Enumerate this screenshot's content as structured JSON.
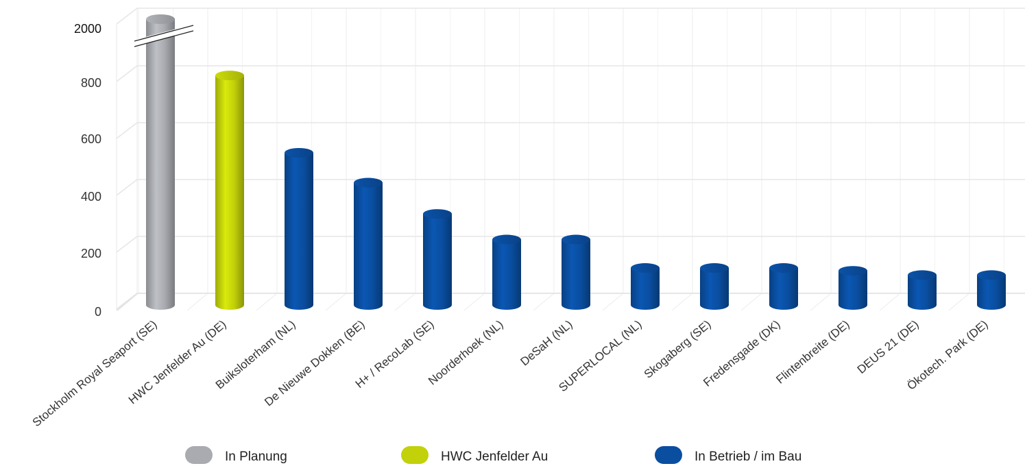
{
  "chart_data": {
    "type": "bar",
    "title": "",
    "xlabel": "",
    "ylabel": "",
    "ylim": [
      0,
      2000
    ],
    "y_ticks": [
      "0",
      "200",
      "400",
      "600",
      "800",
      "2000"
    ],
    "axis_break": {
      "from": 1000,
      "to": 2000
    },
    "grid": true,
    "legend_position": "bottom",
    "categories": [
      "Stockholm Royal Seaport (SE)",
      "HWC Jenfelder Au (DE)",
      "Buiksloterham (NL)",
      "De Nieuwe Dokken (BE)",
      "H+ / RecoLab (SE)",
      "Noorderhoek (NL)",
      "DeSaH (NL)",
      "SUPERLOCAL (NL)",
      "Skogaberg (SE)",
      "Fredensgade (DK)",
      "Flintenbreite (DE)",
      "DEUS 21 (DE)",
      "Ökotech. Park (DE)"
    ],
    "values": [
      2000,
      840,
      535,
      430,
      320,
      230,
      230,
      130,
      130,
      130,
      120,
      105,
      105
    ],
    "groups": [
      "planung",
      "jenfelder",
      "betrieb",
      "betrieb",
      "betrieb",
      "betrieb",
      "betrieb",
      "betrieb",
      "betrieb",
      "betrieb",
      "betrieb",
      "betrieb",
      "betrieb"
    ],
    "legend": [
      {
        "key": "planung",
        "label": "In Planung",
        "color": "#a9abb0"
      },
      {
        "key": "jenfelder",
        "label": "HWC Jenfelder Au",
        "color": "#c2d10a"
      },
      {
        "key": "betrieb",
        "label": "In Betrieb / im Bau",
        "color": "#0a4ea0"
      }
    ]
  }
}
